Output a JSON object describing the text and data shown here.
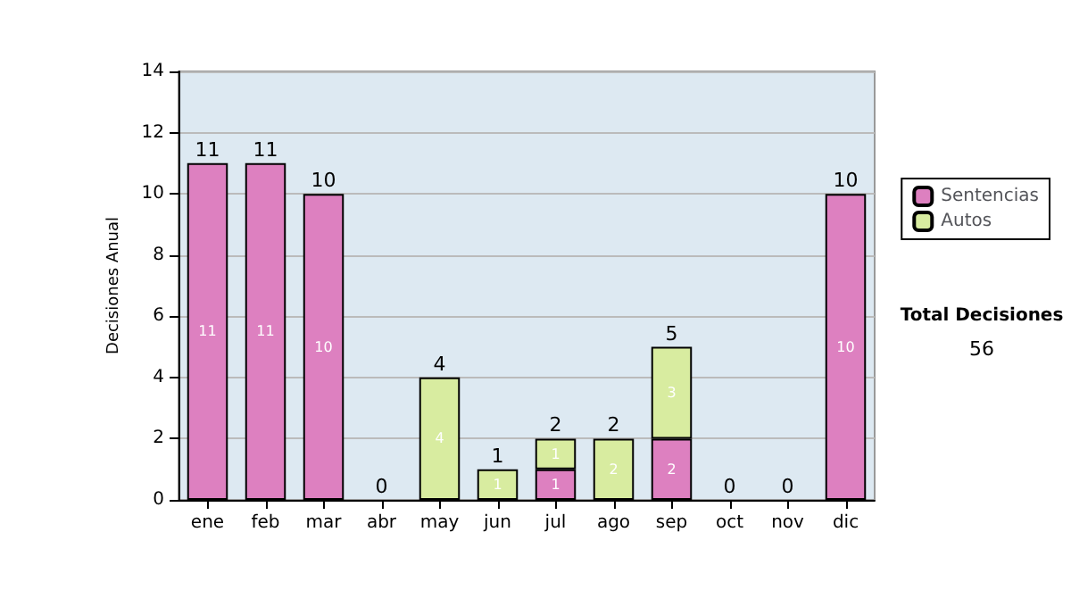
{
  "chart_data": {
    "type": "bar",
    "stacked": true,
    "ylabel": "Decisiones Anual",
    "categories": [
      "ene",
      "feb",
      "mar",
      "abr",
      "may",
      "jun",
      "jul",
      "ago",
      "sep",
      "oct",
      "nov",
      "dic"
    ],
    "series": [
      {
        "name": "Sentencias",
        "color": "#dd80c0",
        "values": [
          11,
          11,
          10,
          0,
          0,
          0,
          1,
          0,
          2,
          0,
          0,
          10
        ],
        "value_labels": [
          "11",
          "11",
          "10",
          null,
          null,
          null,
          "1",
          null,
          "2",
          null,
          null,
          "10"
        ]
      },
      {
        "name": "Autos",
        "color": "#d8eca0",
        "values": [
          0,
          0,
          0,
          0,
          4,
          1,
          1,
          2,
          3,
          0,
          0,
          0
        ],
        "value_labels": [
          null,
          null,
          null,
          null,
          "4",
          "1",
          "1",
          "2",
          "3",
          null,
          null,
          null
        ]
      }
    ],
    "totals": [
      "11",
      "11",
      "10",
      "0",
      "4",
      "1",
      "2",
      "2",
      "5",
      "0",
      "0",
      "10"
    ],
    "ylim": [
      0,
      14
    ],
    "yticks": [
      0,
      2,
      4,
      6,
      8,
      10,
      12,
      14
    ],
    "grid": "y",
    "legend": "right",
    "annotations": [
      "Total Decisiones",
      "56"
    ]
  }
}
